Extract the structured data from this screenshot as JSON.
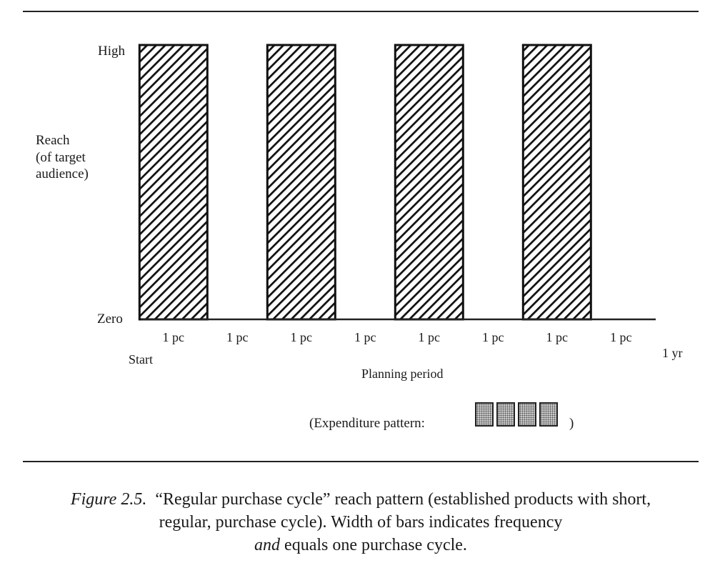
{
  "chart_data": {
    "type": "bar",
    "ylabel_lines": [
      "Reach",
      "(of target",
      "audience)"
    ],
    "xlabel": "Planning period",
    "y_ticks": [
      "High",
      "Zero"
    ],
    "x_start_label": "Start",
    "x_end_label": "1 yr",
    "categories": [
      "1 pc",
      "1 pc",
      "1 pc",
      "1 pc",
      "1 pc",
      "1 pc",
      "1 pc",
      "1 pc"
    ],
    "values": [
      1,
      0,
      1,
      0,
      1,
      0,
      1,
      0
    ],
    "ylim": [
      0,
      1
    ],
    "bar_pattern": "diagonal hatch"
  },
  "expenditure": {
    "label": "(Expenditure pattern:",
    "close": ")",
    "box_count": 4
  },
  "caption": {
    "figure_label": "Figure 2.5.",
    "line1": "“Regular purchase cycle” reach pattern (established products with short,",
    "line2": "regular, purchase cycle).  Width of bars indicates frequency",
    "line3_italic": "and",
    "line3_rest": " equals one purchase cycle."
  }
}
